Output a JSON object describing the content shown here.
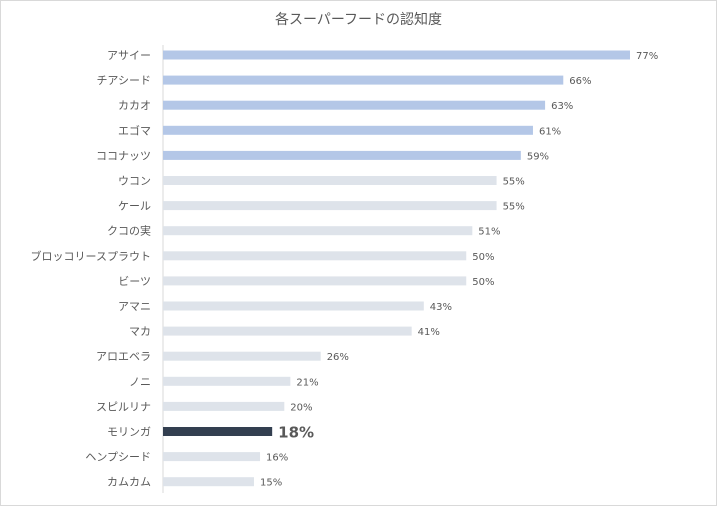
{
  "chart_data": {
    "type": "bar",
    "orientation": "horizontal",
    "title": "各スーパーフードの認知度",
    "xlabel": "",
    "ylabel": "",
    "xlim": [
      0,
      80
    ],
    "grid": false,
    "legend": "none",
    "categories": [
      "アサイー",
      "チアシード",
      "カカオ",
      "エゴマ",
      "ココナッツ",
      "ウコン",
      "ケール",
      "クコの実",
      "ブロッコリースプラウト",
      "ビーツ",
      "アマニ",
      "マカ",
      "アロエベラ",
      "ノニ",
      "スピルリナ",
      "モリンガ",
      "ヘンプシード",
      "カムカム"
    ],
    "values": [
      77,
      66,
      63,
      61,
      59,
      55,
      55,
      51,
      50,
      50,
      43,
      41,
      26,
      21,
      20,
      18,
      16,
      15
    ],
    "value_labels": [
      "77%",
      "66%",
      "63%",
      "61%",
      "59%",
      "55%",
      "55%",
      "51%",
      "50%",
      "50%",
      "43%",
      "41%",
      "26%",
      "21%",
      "20%",
      "18%",
      "16%",
      "15%"
    ],
    "highlight_categories": [
      "アサイー",
      "チアシード",
      "カカオ",
      "エゴマ",
      "ココナッツ"
    ],
    "focus_category": "モリンガ",
    "colors": {
      "top_bar": "#b4c7e7",
      "default_bar": "#dee3ea",
      "focus_bar": "#333f50",
      "focus_label": "#c00000",
      "text": "#595959"
    }
  }
}
